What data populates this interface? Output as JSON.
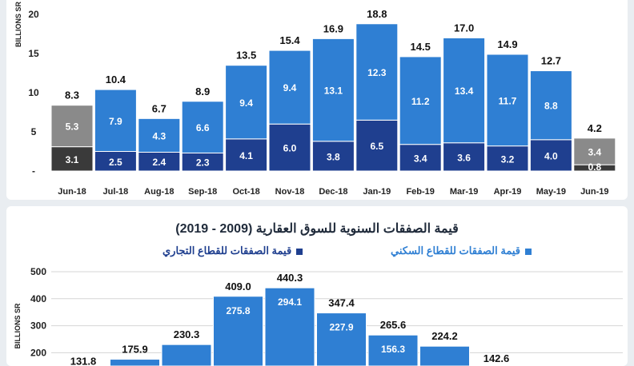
{
  "colors": {
    "residential": "#2f7fd3",
    "commercial": "#1f3f8f",
    "residential_gray": "#8a8a8a",
    "commercial_dark": "#3a3a3a",
    "axis_text": "#222222"
  },
  "chart_data": [
    {
      "type": "bar",
      "stacked": true,
      "ylabel": "BILLIONS SR",
      "ylim": [
        -2,
        22
      ],
      "yticks": [
        "-",
        5,
        10,
        15,
        20
      ],
      "categories": [
        "Jun-18",
        "Jul-18",
        "Aug-18",
        "Sep-18",
        "Oct-18",
        "Nov-18",
        "Dec-18",
        "Jan-19",
        "Feb-19",
        "Mar-19",
        "Apr-19",
        "May-19",
        "Jun-19"
      ],
      "series": [
        {
          "values": [
            3.1,
            2.5,
            2.4,
            2.3,
            4.1,
            6.0,
            3.8,
            6.5,
            3.4,
            3.6,
            3.2,
            4.0,
            0.8
          ]
        },
        {
          "values": [
            5.3,
            7.9,
            4.3,
            6.6,
            9.4,
            9.4,
            13.1,
            12.3,
            11.2,
            13.4,
            11.7,
            8.8,
            3.4
          ]
        }
      ],
      "totals": [
        "8.3",
        "10.4",
        "6.7",
        "8.9",
        "13.5",
        "15.4",
        "16.9",
        "18.8",
        "14.5",
        "17.0",
        "14.9",
        "12.7",
        "4.2"
      ],
      "lower_labels": [
        "3.1",
        "2.5",
        "2.4",
        "2.3",
        "4.1",
        "6.0",
        "3.8",
        "6.5",
        "3.4",
        "3.6",
        "3.2",
        "4.0",
        "0.8"
      ],
      "upper_labels": [
        "5.3",
        "7.9",
        "4.3",
        "6.6",
        "9.4",
        "9.4",
        "13.1",
        "12.3",
        "11.2",
        "13.4",
        "11.7",
        "8.8",
        "3.4"
      ],
      "grid": false
    },
    {
      "type": "bar",
      "stacked": true,
      "title": "قيمة الصفقات السنوية للسوق العقارية (2009 - 2019)",
      "ylabel": "BILLIONS SR",
      "ylim": [
        0,
        500
      ],
      "yticks": [
        200,
        300,
        400,
        500
      ],
      "legend": [
        "قيمة الصفقات للقطاع السكني",
        "قيمة الصفقات للقطاع التجاري"
      ],
      "totals": [
        "131.8",
        "175.9",
        "230.3",
        "409.0",
        "440.3",
        "347.4",
        "265.6",
        "224.2",
        "142.6"
      ],
      "upper_labels": [
        "275.8",
        "294.1",
        "227.9",
        "156.3"
      ],
      "grid": true
    }
  ]
}
